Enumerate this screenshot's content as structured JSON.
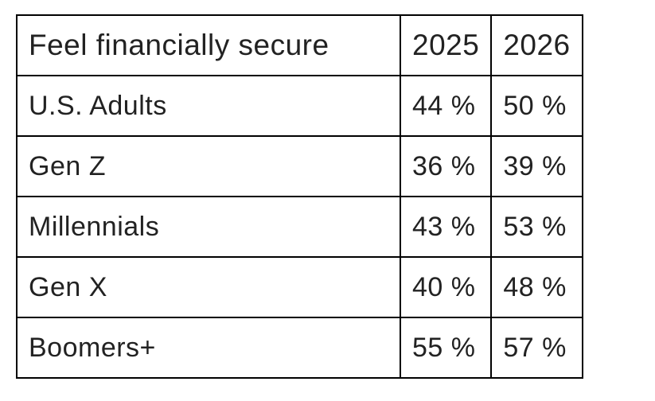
{
  "chart_data": {
    "type": "table",
    "title": "Feel financially secure",
    "corner_label": "Feel financially secure",
    "col_headers": [
      "2025",
      "2026"
    ],
    "unit": "%",
    "rows": [
      {
        "label": "U.S. Adults",
        "values": [
          44,
          50
        ],
        "display": [
          "44 %",
          "50 %"
        ]
      },
      {
        "label": "Gen Z",
        "values": [
          36,
          39
        ],
        "display": [
          "36 %",
          "39 %"
        ]
      },
      {
        "label": "Millennials",
        "values": [
          43,
          53
        ],
        "display": [
          "43 %",
          "53 %"
        ]
      },
      {
        "label": "Gen X",
        "values": [
          40,
          48
        ],
        "display": [
          "40 %",
          "48 %"
        ]
      },
      {
        "label": "Boomers+",
        "values": [
          55,
          57
        ],
        "display": [
          "55 %",
          "57 %"
        ]
      }
    ],
    "colors": {
      "border": "#000000",
      "text": "#222222",
      "background": "#ffffff"
    }
  }
}
